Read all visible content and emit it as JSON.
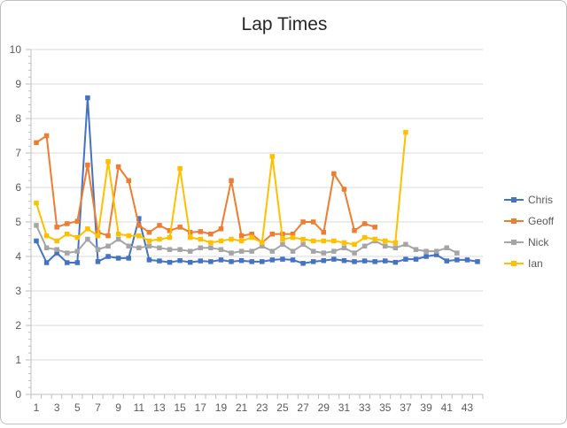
{
  "chart_data": {
    "type": "line",
    "title": "Lap Times",
    "xlabel": "",
    "ylabel": "",
    "ylim": [
      0,
      10
    ],
    "yticks": [
      0,
      1,
      2,
      3,
      4,
      5,
      6,
      7,
      8,
      9,
      10
    ],
    "x": [
      1,
      2,
      3,
      4,
      5,
      6,
      7,
      8,
      9,
      10,
      11,
      12,
      13,
      14,
      15,
      16,
      17,
      18,
      19,
      20,
      21,
      22,
      23,
      24,
      25,
      26,
      27,
      28,
      29,
      30,
      31,
      32,
      33,
      34,
      35,
      36,
      37,
      38,
      39,
      40,
      41,
      42,
      43,
      44
    ],
    "x_tick_labels": [
      1,
      3,
      5,
      7,
      9,
      11,
      13,
      15,
      17,
      19,
      21,
      23,
      25,
      27,
      29,
      31,
      33,
      35,
      37,
      39,
      41,
      43
    ],
    "grid": true,
    "legend_position": "right",
    "series": [
      {
        "name": "Chris",
        "color": "#4472C4",
        "values": [
          4.45,
          3.82,
          4.1,
          3.82,
          3.82,
          8.6,
          3.85,
          4.0,
          3.95,
          3.95,
          5.1,
          3.9,
          3.87,
          3.83,
          3.88,
          3.83,
          3.87,
          3.85,
          3.9,
          3.85,
          3.88,
          3.85,
          3.85,
          3.9,
          3.92,
          3.9,
          3.8,
          3.85,
          3.88,
          3.92,
          3.88,
          3.85,
          3.87,
          3.85,
          3.87,
          3.83,
          3.92,
          3.92,
          4.0,
          4.05,
          3.87,
          3.9,
          3.9,
          3.85
        ]
      },
      {
        "name": "Geoff",
        "color": "#ED7D31",
        "values": [
          7.3,
          7.5,
          4.85,
          4.95,
          5.02,
          6.65,
          4.7,
          4.6,
          6.6,
          6.2,
          4.9,
          4.7,
          4.9,
          4.75,
          4.85,
          4.7,
          4.72,
          4.65,
          4.8,
          6.2,
          4.6,
          4.65,
          4.4,
          4.65,
          4.65,
          4.65,
          5.0,
          5.0,
          4.7,
          6.4,
          5.95,
          4.75,
          4.95,
          4.85,
          null,
          null,
          null,
          null,
          null,
          null,
          null,
          null,
          null,
          null
        ]
      },
      {
        "name": "Nick",
        "color": "#A5A5A5",
        "values": [
          4.9,
          4.25,
          4.2,
          4.1,
          4.15,
          4.5,
          4.2,
          4.3,
          4.5,
          4.3,
          4.25,
          4.3,
          4.25,
          4.2,
          4.2,
          4.15,
          4.25,
          4.25,
          4.2,
          4.1,
          4.15,
          4.15,
          4.3,
          4.15,
          4.35,
          4.15,
          4.35,
          4.15,
          4.1,
          4.15,
          4.25,
          4.1,
          4.3,
          4.45,
          4.3,
          4.25,
          4.35,
          4.2,
          4.15,
          4.15,
          4.25,
          4.1,
          null,
          null
        ]
      },
      {
        "name": "Ian",
        "color": "#FFC000",
        "values": [
          5.55,
          4.6,
          4.45,
          4.65,
          4.55,
          4.8,
          4.6,
          6.75,
          4.65,
          4.6,
          4.6,
          4.45,
          4.5,
          4.55,
          6.55,
          4.55,
          4.5,
          4.4,
          4.45,
          4.5,
          4.45,
          4.55,
          4.4,
          6.9,
          4.5,
          4.55,
          4.5,
          4.45,
          4.45,
          4.45,
          4.4,
          4.35,
          4.55,
          4.5,
          4.45,
          4.4,
          7.6,
          null,
          null,
          null,
          null,
          null,
          null,
          null
        ]
      }
    ]
  }
}
